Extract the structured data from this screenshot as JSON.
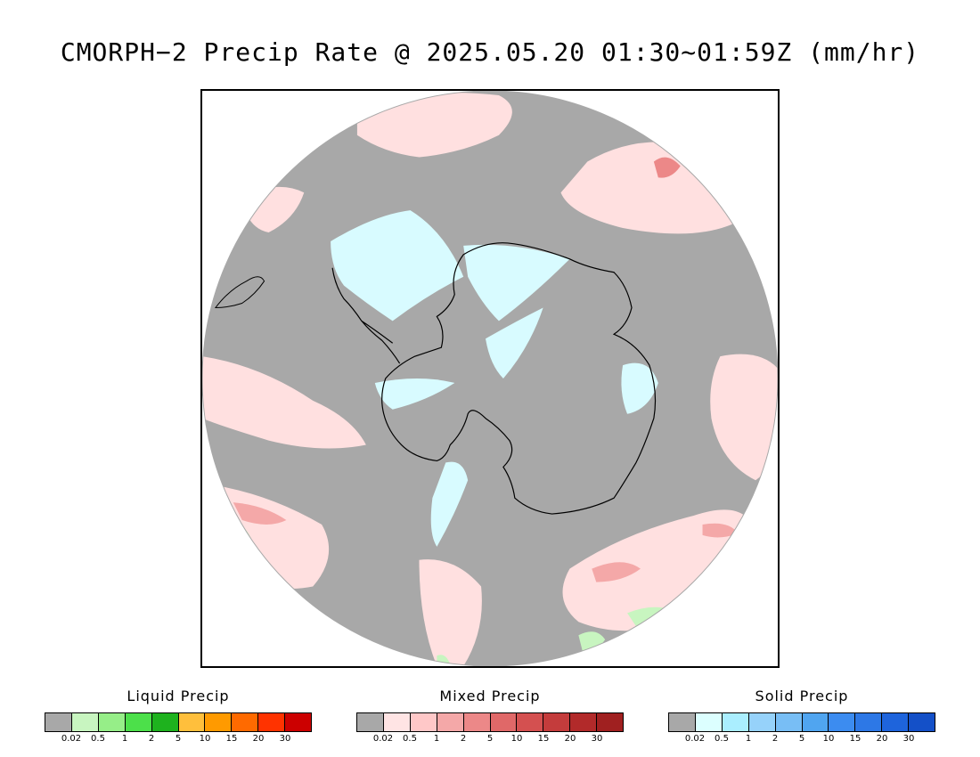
{
  "title": "CMORPH−2 Precip Rate @ 2025.05.20 01:30~01:59Z (mm/hr)",
  "map": {
    "projection": "south-polar stereographic",
    "background_color": "#a8a8a8",
    "icons": [
      "antarctica-coastline",
      "south-america-tip-coastline"
    ]
  },
  "legends": [
    {
      "id": "liquid",
      "title": "Liquid Precip",
      "colors": [
        "#a8a8a8",
        "#c8f5c0",
        "#96ee88",
        "#4ce04a",
        "#1eb21e",
        "#ffbf3c",
        "#ff9a00",
        "#ff6a00",
        "#ff3300",
        "#cc0000"
      ],
      "ticks": [
        "0.02",
        "0.5",
        "1",
        "2",
        "5",
        "10",
        "15",
        "20",
        "30"
      ]
    },
    {
      "id": "mixed",
      "title": "Mixed Precip",
      "colors": [
        "#a8a8a8",
        "#ffe4e4",
        "#ffc8c8",
        "#f4a8a8",
        "#ec8888",
        "#e06868",
        "#d45050",
        "#c43c3c",
        "#b22a2a",
        "#a02020"
      ],
      "ticks": [
        "0.02",
        "0.5",
        "1",
        "2",
        "5",
        "10",
        "15",
        "20",
        "30"
      ]
    },
    {
      "id": "solid",
      "title": "Solid Precip",
      "colors": [
        "#a8a8a8",
        "#dcffff",
        "#aaeeff",
        "#96d2fa",
        "#78bef5",
        "#50a5f0",
        "#3c8cf0",
        "#2d78e6",
        "#1e64dc",
        "#1450c8"
      ],
      "ticks": [
        "0.02",
        "0.5",
        "1",
        "2",
        "5",
        "10",
        "15",
        "20",
        "30"
      ]
    }
  ]
}
